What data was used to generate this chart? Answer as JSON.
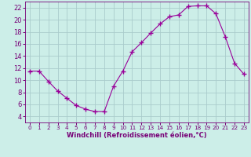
{
  "x": [
    0,
    1,
    2,
    3,
    4,
    5,
    6,
    7,
    8,
    9,
    10,
    11,
    12,
    13,
    14,
    15,
    16,
    17,
    18,
    19,
    20,
    21,
    22,
    23
  ],
  "y": [
    11.5,
    11.5,
    9.8,
    8.2,
    7.0,
    5.8,
    5.2,
    4.8,
    4.8,
    9.0,
    11.5,
    14.7,
    16.2,
    17.8,
    19.3,
    20.5,
    20.8,
    22.2,
    22.3,
    22.3,
    21.0,
    17.2,
    12.8,
    11.0
  ],
  "line_color": "#990099",
  "marker": "+",
  "markersize": 4,
  "markeredgewidth": 1.0,
  "linewidth": 0.8,
  "background_color": "#cceee8",
  "grid_color": "#aacccc",
  "xlabel": "Windchill (Refroidissement éolien,°C)",
  "xlim": [
    -0.5,
    23.5
  ],
  "ylim": [
    3.0,
    23.0
  ],
  "yticks": [
    4,
    6,
    8,
    10,
    12,
    14,
    16,
    18,
    20,
    22
  ],
  "xticks": [
    0,
    1,
    2,
    3,
    4,
    5,
    6,
    7,
    8,
    9,
    10,
    11,
    12,
    13,
    14,
    15,
    16,
    17,
    18,
    19,
    20,
    21,
    22,
    23
  ],
  "tick_color": "#770077",
  "label_color": "#770077",
  "spine_color": "#770077",
  "xlabel_fontsize": 6.0,
  "xtick_fontsize": 5.2,
  "ytick_fontsize": 6.0
}
